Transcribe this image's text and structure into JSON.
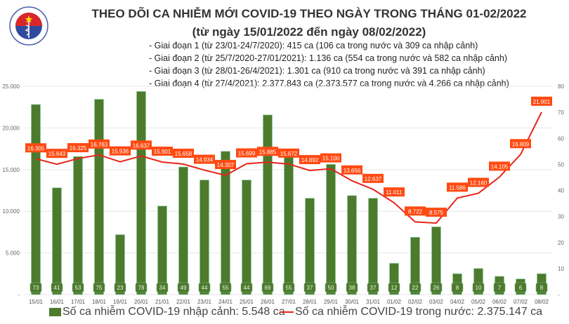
{
  "header": {
    "title": "THEO DÕI CA NHIỄM MỚI COVID-19 THEO NGÀY TRONG THÁNG 01-02/2022",
    "subtitle": "(từ ngày 15/01/2022 đến ngày 08/02/2022)",
    "notes": [
      "- Giai đoạn 1 (từ 23/01-24/7/2020): 415 ca (106 ca trong nước và 309 ca nhập cảnh)",
      "- Giai đoạn 2 (từ 25/7/2020-27/01/2021): 1.136 ca (554 ca trong nước và 582 ca nhập cảnh)",
      "- Giai đoạn 3 (từ 28/01-26/4/2021): 1.301 ca (910 ca trong nước và 391 ca nhập cảnh)",
      "- Giai đoạn 4 (từ 27/4/2021): 2.377.843 ca (2.373.577 ca trong nước và 4.266 ca nhập cảnh)"
    ],
    "logo_text": "BỘ Y TẾ · MINISTRY OF HEALTH"
  },
  "chart_data": {
    "type": "bar+line",
    "categories": [
      "15/01",
      "16/01",
      "17/01",
      "18/01",
      "19/01",
      "20/01",
      "21/01",
      "22/01",
      "23/01",
      "24/01",
      "25/01",
      "26/01",
      "27/01",
      "28/01",
      "29/01",
      "30/01",
      "31/01",
      "01/02",
      "02/02",
      "03/02",
      "04/02",
      "05/02",
      "06/02",
      "07/02",
      "08/02"
    ],
    "series": [
      {
        "name": "Số ca nhiễm COVID-19 nhập cảnh: 5.548 ca",
        "type": "bar",
        "axis": "right",
        "color": "#4e7a2e",
        "values": [
          73,
          41,
          53,
          75,
          23,
          78,
          34,
          49,
          44,
          55,
          44,
          69,
          55,
          37,
          50,
          38,
          37,
          12,
          22,
          26,
          8,
          10,
          7,
          6,
          8
        ],
        "labels": [
          "73",
          "41",
          "53",
          "75",
          "23",
          "78",
          "34",
          "49",
          "44",
          "55",
          "44",
          "69",
          "55",
          "37",
          "50",
          "38",
          "37",
          "12",
          "22",
          "26",
          "8",
          "10",
          "7",
          "6",
          "8"
        ]
      },
      {
        "name": "Số ca nhiễm COVID-19 trong nước: 2.375.147 ca",
        "type": "line",
        "axis": "left",
        "color": "#e8231a",
        "values": [
          16305,
          15643,
          16325,
          16763,
          15936,
          16637,
          15901,
          15658,
          14934,
          14307,
          15699,
          15885,
          15672,
          14892,
          15100,
          13656,
          12637,
          11011,
          8722,
          8575,
          11586,
          12160,
          14105,
          16809,
          21901
        ],
        "labels": [
          "16.305",
          "15.643",
          "16.325",
          "16.763",
          "15.936",
          "16.637",
          "15.901",
          "15.658",
          "14.934",
          "14.307",
          "15.699",
          "15.885",
          "15.672",
          "14.892",
          "15.100",
          "13.656",
          "12.637",
          "11.011",
          "8.722",
          "8.575",
          "11.586",
          "12.160",
          "14.105",
          "16.809",
          "21.901"
        ]
      }
    ],
    "y_left": {
      "range": [
        0,
        25000
      ],
      "ticks": [
        "-",
        "5.000",
        "10.000",
        "15.000",
        "20.000",
        "25.000"
      ]
    },
    "y_right": {
      "range": [
        0,
        80
      ],
      "ticks": [
        "-",
        "10",
        "20",
        "30",
        "40",
        "50",
        "60",
        "70",
        "80"
      ]
    },
    "grid": true,
    "legend_position": "bottom",
    "label_color": "#ff4a12"
  }
}
